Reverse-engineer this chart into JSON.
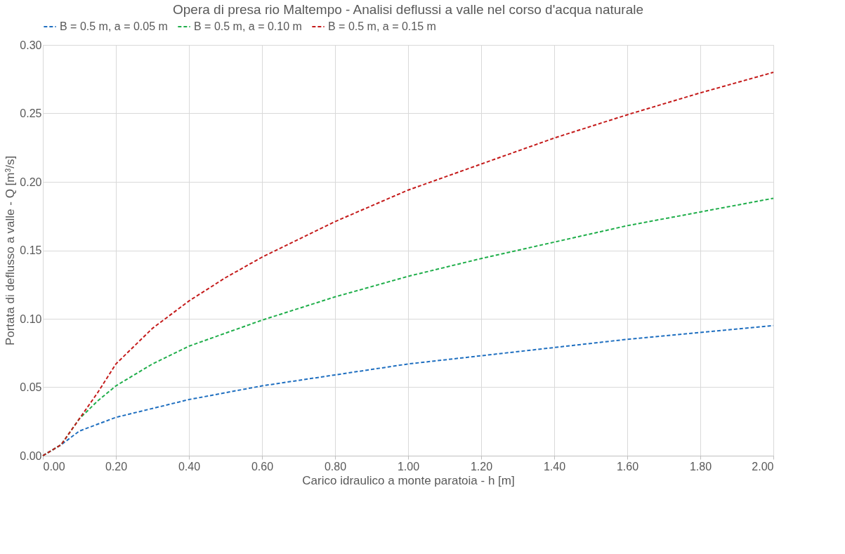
{
  "chart_data": {
    "type": "line",
    "title": "Opera di presa rio Maltempo - Analisi deflussi a valle nel corso d'acqua naturale",
    "xlabel": "Carico idraulico a monte paratoia - h [m]",
    "ylabel": "Portata di deflusso a valle - Q [m³/s]",
    "xlim": [
      0,
      2
    ],
    "ylim": [
      0,
      0.3
    ],
    "xticks": [
      {
        "value": 0,
        "label": "0.00"
      },
      {
        "value": 0.2,
        "label": "0.20"
      },
      {
        "value": 0.4,
        "label": "0.40"
      },
      {
        "value": 0.6,
        "label": "0.60"
      },
      {
        "value": 0.8,
        "label": "0.80"
      },
      {
        "value": 1.0,
        "label": "1.00"
      },
      {
        "value": 1.2,
        "label": "1.20"
      },
      {
        "value": 1.4,
        "label": "1.40"
      },
      {
        "value": 1.6,
        "label": "1.60"
      },
      {
        "value": 1.8,
        "label": "1.80"
      },
      {
        "value": 2.0,
        "label": "2.00"
      }
    ],
    "yticks": [
      {
        "value": 0,
        "label": "0.00"
      },
      {
        "value": 0.05,
        "label": "0.05"
      },
      {
        "value": 0.1,
        "label": "0.10"
      },
      {
        "value": 0.15,
        "label": "0.15"
      },
      {
        "value": 0.2,
        "label": "0.20"
      },
      {
        "value": 0.25,
        "label": "0.25"
      },
      {
        "value": 0.3,
        "label": "0.30"
      }
    ],
    "grid": true,
    "legend": "top",
    "marker": "none",
    "line_style": "dashed",
    "series": [
      {
        "name": "B = 0.5 m, a = 0.05 m",
        "color": "#1f6fc0",
        "x": [
          0,
          0.05,
          0.1,
          0.2,
          0.4,
          0.6,
          0.8,
          1.0,
          1.2,
          1.4,
          1.6,
          1.8,
          2.0
        ],
        "values": [
          0,
          0.008,
          0.018,
          0.028,
          0.041,
          0.051,
          0.059,
          0.067,
          0.073,
          0.079,
          0.085,
          0.09,
          0.095
        ]
      },
      {
        "name": "B = 0.5 m, a = 0.10 m",
        "color": "#1fae4a",
        "x": [
          0,
          0.05,
          0.1,
          0.15,
          0.2,
          0.3,
          0.4,
          0.6,
          0.8,
          1.0,
          1.2,
          1.4,
          1.6,
          1.8,
          2.0
        ],
        "values": [
          0,
          0.008,
          0.027,
          0.04,
          0.051,
          0.067,
          0.08,
          0.099,
          0.116,
          0.131,
          0.144,
          0.156,
          0.168,
          0.178,
          0.188
        ]
      },
      {
        "name": "B = 0.5 m, a = 0.15 m",
        "color": "#c41a1a",
        "x": [
          0,
          0.05,
          0.1,
          0.15,
          0.2,
          0.3,
          0.4,
          0.5,
          0.6,
          0.8,
          1.0,
          1.2,
          1.4,
          1.6,
          1.8,
          2.0
        ],
        "values": [
          0,
          0.008,
          0.027,
          0.046,
          0.067,
          0.093,
          0.113,
          0.13,
          0.145,
          0.171,
          0.194,
          0.213,
          0.232,
          0.249,
          0.265,
          0.28
        ]
      }
    ]
  }
}
